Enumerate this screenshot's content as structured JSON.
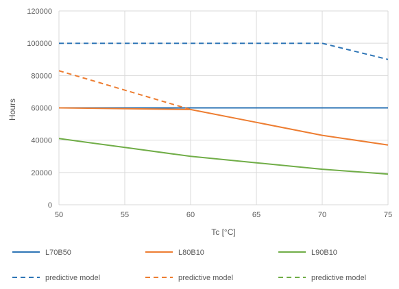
{
  "chart_data": {
    "type": "line",
    "title": "",
    "xlabel": "Tc [°C]",
    "ylabel": "Hours",
    "xlim": [
      50,
      75
    ],
    "ylim": [
      0,
      120000
    ],
    "x_ticks": [
      50,
      55,
      60,
      65,
      70,
      75
    ],
    "y_ticks": [
      0,
      20000,
      40000,
      60000,
      80000,
      100000,
      120000
    ],
    "grid": true,
    "legend_position": "bottom",
    "series": [
      {
        "name": "L70B50",
        "color": "#2E75B6",
        "style": "solid",
        "x": [
          50,
          75
        ],
        "y": [
          60000,
          60000
        ]
      },
      {
        "name": "L80B10",
        "color": "#ED7D31",
        "style": "solid",
        "x": [
          50,
          60,
          65,
          70,
          75
        ],
        "y": [
          60000,
          59000,
          51000,
          43000,
          37000
        ]
      },
      {
        "name": "L90B10",
        "color": "#70AD47",
        "style": "solid",
        "x": [
          50,
          55,
          60,
          65,
          70,
          75
        ],
        "y": [
          41000,
          35500,
          30000,
          26000,
          22000,
          19000
        ]
      },
      {
        "name": "predictive model",
        "color": "#2E75B6",
        "style": "dashed",
        "x": [
          50,
          70,
          75
        ],
        "y": [
          100000,
          100000,
          90000
        ]
      },
      {
        "name": "predictive model",
        "color": "#ED7D31",
        "style": "dashed",
        "x": [
          50,
          60
        ],
        "y": [
          83000,
          59000
        ]
      },
      {
        "name": "predictive model",
        "color": "#70AD47",
        "style": "dashed",
        "x": [],
        "y": []
      }
    ]
  }
}
